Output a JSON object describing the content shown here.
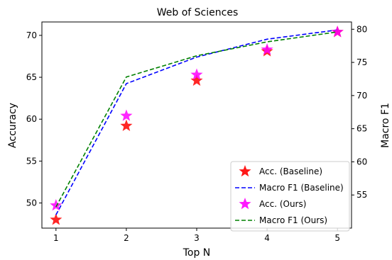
{
  "chart_data": {
    "type": "line",
    "title": "Web of Sciences",
    "xlabel": "Top N",
    "ylabel_left": "Accuracy",
    "ylabel_right": "Macro F1",
    "x": [
      1,
      2,
      3,
      4,
      5
    ],
    "x_ticks": [
      "1",
      "2",
      "3",
      "4",
      "5"
    ],
    "xlim": [
      0.8,
      5.2
    ],
    "ylim_left": [
      47.0,
      71.6
    ],
    "ylim_right": [
      50.0,
      81.1
    ],
    "y_ticks_left": [
      "50",
      "55",
      "60",
      "65",
      "70"
    ],
    "y_ticks_right": [
      "55",
      "60",
      "65",
      "70",
      "75",
      "80"
    ],
    "legend_position": "lower-right",
    "grid": false,
    "series": [
      {
        "name": "Acc. (Baseline)",
        "axis": "left",
        "kind": "marker",
        "marker": "star",
        "color": "#ff0000",
        "values": [
          48.0,
          59.2,
          64.6,
          68.1,
          70.4
        ]
      },
      {
        "name": "Macro F1 (Baseline)",
        "axis": "right",
        "kind": "dashed-line",
        "color": "#0000ff",
        "values": [
          52.0,
          71.8,
          75.8,
          78.5,
          79.9
        ]
      },
      {
        "name": "Acc. (Ours)",
        "axis": "left",
        "kind": "marker",
        "marker": "star",
        "color": "#ff00ff",
        "values": [
          49.7,
          60.4,
          65.3,
          68.3,
          70.4
        ]
      },
      {
        "name": "Macro F1 (Ours)",
        "axis": "right",
        "kind": "dashed-line",
        "color": "#008000",
        "values": [
          53.2,
          72.8,
          76.0,
          78.1,
          79.6
        ]
      }
    ]
  }
}
